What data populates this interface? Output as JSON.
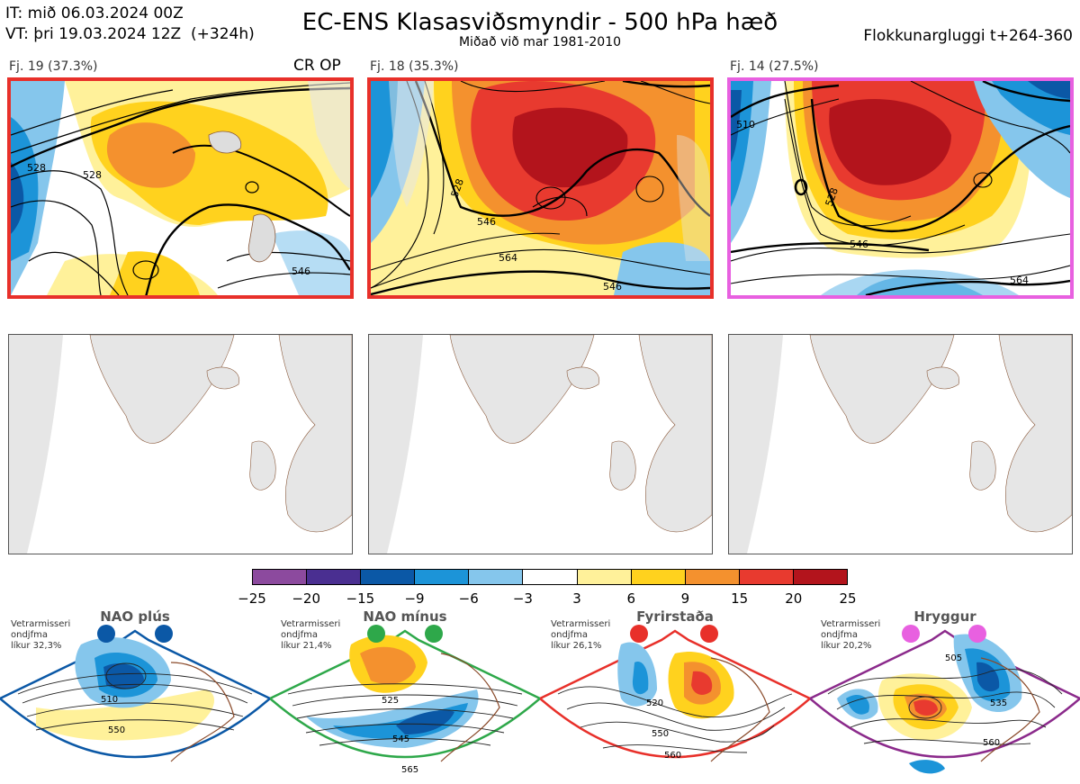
{
  "header": {
    "it_line": "IT: mið 06.03.2024 00Z",
    "vt_line": "VT: þri 19.03.2024 12Z  (+324h)",
    "title": "EC-ENS Klasasviðsmyndir - 500 hPa hæð",
    "subtitle": "Miðað við mar 1981-2010",
    "window": "Flokkunargluggi t+264-360"
  },
  "clusters": [
    {
      "label": "Fj. 19 (37.3%)",
      "tag": "CR OP",
      "border_color": "#e8302a",
      "contours": [
        "528",
        "546",
        "528"
      ]
    },
    {
      "label": "Fj. 18 (35.3%)",
      "tag": "",
      "border_color": "#e8302a",
      "contours": [
        "528",
        "546",
        "564",
        "546"
      ]
    },
    {
      "label": "Fj. 14 (27.5%)",
      "tag": "",
      "border_color": "#e860e0",
      "contours": [
        "510",
        "528",
        "546",
        "564"
      ]
    }
  ],
  "colorbar": {
    "colors": [
      "#8c4a9e",
      "#4a2f91",
      "#0b58a6",
      "#1c94d8",
      "#85c6ec",
      "#ffffff",
      "#fff19a",
      "#ffd21e",
      "#f4912e",
      "#e83a2f",
      "#b3141c"
    ],
    "ticks": [
      "−25",
      "−20",
      "−15",
      "−9",
      "−6",
      "−3",
      "3",
      "6",
      "9",
      "15",
      "20",
      "25"
    ]
  },
  "regimes": [
    {
      "name": "NAO plús",
      "note1": "Vetrarmisseri",
      "note2": "ondjfma",
      "note3": "líkur 32,3%",
      "color": "#0b58a6",
      "contours": [
        "510",
        "550"
      ]
    },
    {
      "name": "NAO mínus",
      "note1": "Vetrarmisseri",
      "note2": "ondjfma",
      "note3": "líkur 21,4%",
      "color": "#2ea84a",
      "contours": [
        "525",
        "545",
        "565"
      ]
    },
    {
      "name": "Fyrirstaða",
      "note1": "Vetrarmisseri",
      "note2": "ondjfma",
      "note3": "líkur 26,1%",
      "color": "#e8302a",
      "contours": [
        "520",
        "550",
        "560"
      ]
    },
    {
      "name": "Hryggur",
      "note1": "Vetrarmisseri",
      "note2": "ondjfma",
      "note3": "líkur 20,2%",
      "color": "#8b2a8b",
      "contours": [
        "505",
        "535",
        "560"
      ]
    }
  ]
}
